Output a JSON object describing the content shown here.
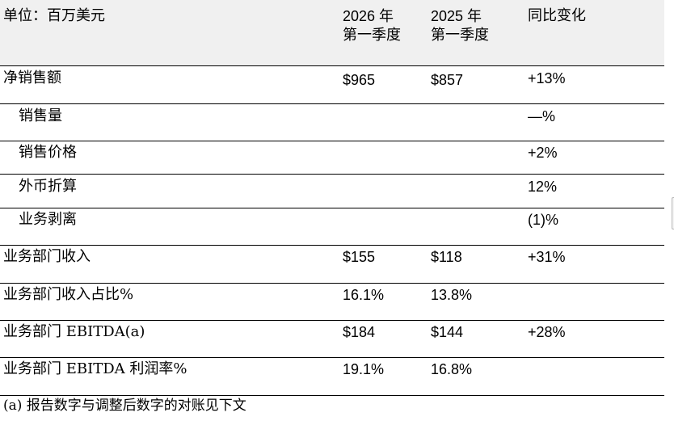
{
  "table": {
    "header": {
      "unit_label": "单位：百万美元",
      "col_2026": [
        "2026 年",
        "第一季度"
      ],
      "col_2025": [
        "2025 年",
        "第一季度"
      ],
      "col_yoy": "同比变化"
    },
    "rows": [
      {
        "label": "净销售额",
        "v2026": "$965",
        "v2025": "$857",
        "yoy": "+13%"
      },
      {
        "label": "销售量",
        "v2026": "",
        "v2025": "",
        "yoy": "—%"
      },
      {
        "label": "销售价格",
        "v2026": "",
        "v2025": "",
        "yoy": "+2%"
      },
      {
        "label": "外币折算",
        "v2026": "",
        "v2025": "",
        "yoy": "12%"
      },
      {
        "label": "业务剥离",
        "v2026": "",
        "v2025": "",
        "yoy": "(1)%"
      },
      {
        "label": "业务部门收入",
        "v2026": "$155",
        "v2025": "$118",
        "yoy": "+31%"
      },
      {
        "label": "业务部门收入占比%",
        "v2026": "16.1%",
        "v2025": "13.8%",
        "yoy": ""
      },
      {
        "label": "业务部门 EBITDA(a)",
        "v2026": "$184",
        "v2025": "$144",
        "yoy": "+28%"
      },
      {
        "label": "业务部门 EBITDA 利润率%",
        "v2026": "19.1%",
        "v2025": "16.8%",
        "yoy": ""
      }
    ]
  },
  "footnote": "(a) 报告数字与调整后数字的对账见下文"
}
